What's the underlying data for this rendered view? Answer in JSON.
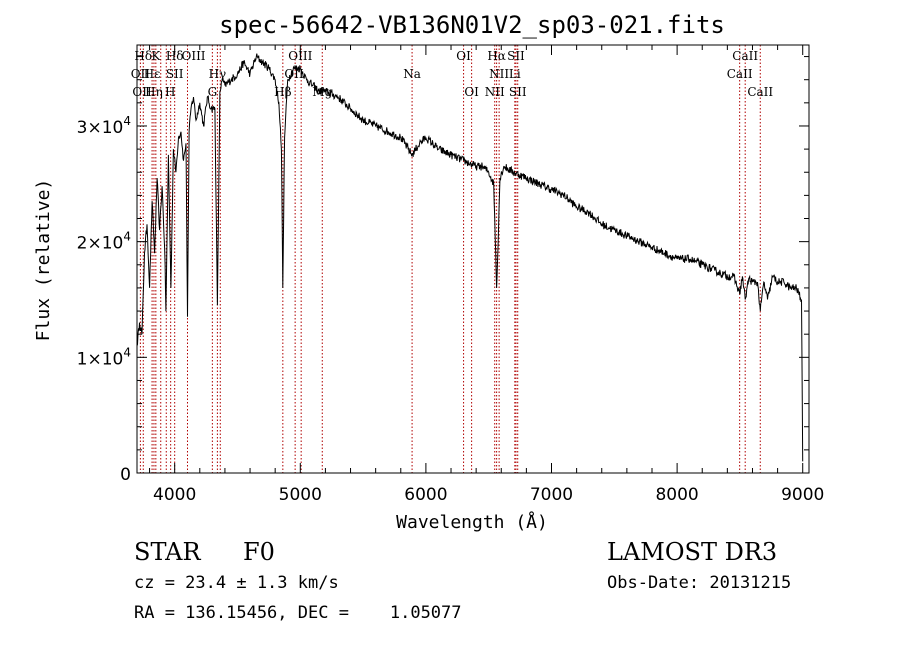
{
  "chart_data": {
    "type": "line",
    "title": "spec-56642-VB136N01V2_sp03-021.fits",
    "xlabel": "Wavelength (Å)",
    "ylabel": "Flux (relative)",
    "xlim": [
      3700,
      9050
    ],
    "ylim": [
      0,
      37000
    ],
    "x_ticks": [
      4000,
      5000,
      6000,
      7000,
      8000,
      9000
    ],
    "x_tick_labels": [
      "4000",
      "5000",
      "6000",
      "7000",
      "8000",
      "9000"
    ],
    "y_ticks": [
      0,
      10000,
      20000,
      30000
    ],
    "y_tick_labels": [
      {
        "mantissa": "0",
        "exp": ""
      },
      {
        "mantissa": "1×10",
        "exp": "4"
      },
      {
        "mantissa": "2×10",
        "exp": "4"
      },
      {
        "mantissa": "3×10",
        "exp": "4"
      }
    ],
    "series": [
      {
        "name": "flux",
        "x": [
          3700,
          3720,
          3740,
          3760,
          3780,
          3800,
          3820,
          3840,
          3860,
          3880,
          3900,
          3920,
          3930,
          3950,
          3970,
          3990,
          4010,
          4030,
          4050,
          4070,
          4090,
          4102,
          4115,
          4130,
          4150,
          4170,
          4200,
          4230,
          4260,
          4290,
          4320,
          4340,
          4360,
          4380,
          4400,
          4450,
          4500,
          4550,
          4600,
          4650,
          4700,
          4750,
          4800,
          4830,
          4850,
          4861,
          4875,
          4900,
          4950,
          5000,
          5050,
          5100,
          5150,
          5200,
          5300,
          5400,
          5500,
          5600,
          5700,
          5800,
          5890,
          5950,
          6000,
          6100,
          6200,
          6300,
          6400,
          6450,
          6500,
          6540,
          6563,
          6590,
          6620,
          6700,
          6800,
          6900,
          7000,
          7100,
          7200,
          7300,
          7400,
          7500,
          7600,
          7700,
          7800,
          7900,
          8000,
          8100,
          8200,
          8300,
          8400,
          8450,
          8498,
          8520,
          8542,
          8570,
          8600,
          8640,
          8662,
          8690,
          8720,
          8760,
          8800,
          8850,
          8900,
          8950,
          8990,
          9000
        ],
        "y": [
          11000,
          13000,
          12000,
          19000,
          21500,
          16000,
          23500,
          19000,
          25500,
          21000,
          24800,
          19500,
          14000,
          27500,
          16000,
          28000,
          26000,
          29000,
          29500,
          27000,
          28500,
          13500,
          29500,
          31500,
          32500,
          30500,
          32000,
          30000,
          32500,
          31500,
          31500,
          14500,
          33000,
          34000,
          33500,
          34000,
          34500,
          35500,
          34500,
          36000,
          35500,
          35000,
          34000,
          32000,
          28000,
          16000,
          29000,
          34000,
          35000,
          35000,
          34000,
          33500,
          33000,
          33000,
          32500,
          31500,
          30500,
          30000,
          29500,
          29000,
          27500,
          28500,
          29000,
          28000,
          27500,
          27000,
          26500,
          26500,
          26000,
          25000,
          16000,
          25500,
          26500,
          26000,
          25500,
          25000,
          24500,
          24000,
          23000,
          22500,
          21500,
          21000,
          20500,
          20000,
          19500,
          19000,
          18500,
          18500,
          18000,
          17500,
          17000,
          17000,
          15500,
          17000,
          15000,
          16800,
          16500,
          16500,
          14000,
          16500,
          15000,
          17000,
          16500,
          16500,
          16000,
          16000,
          15000,
          1000
        ]
      }
    ],
    "line_markers": [
      {
        "label": "Hδ",
        "x": 3750,
        "row": 1
      },
      {
        "label": "K",
        "x": 3850,
        "row": 1
      },
      {
        "label": "Hδ",
        "x": 4000,
        "row": 1
      },
      {
        "label": "OIII",
        "x": 4150,
        "row": 1
      },
      {
        "label": "OII",
        "x": 3727,
        "row": 2
      },
      {
        "label": "Hε",
        "x": 3820,
        "row": 2
      },
      {
        "label": "SII",
        "x": 4000,
        "row": 2
      },
      {
        "label": "Hγ",
        "x": 4340,
        "row": 2
      },
      {
        "label": "OII",
        "x": 3740,
        "row": 3
      },
      {
        "label": "Hη",
        "x": 3835,
        "row": 3
      },
      {
        "label": "H",
        "x": 3965,
        "row": 3
      },
      {
        "label": "G",
        "x": 4300,
        "row": 3
      },
      {
        "label": "OIII",
        "x": 5000,
        "row": 1
      },
      {
        "label": "OII",
        "x": 4950,
        "row": 2
      },
      {
        "label": "Hβ",
        "x": 4861,
        "row": 3
      },
      {
        "label": "Mg",
        "x": 5175,
        "row": 3
      },
      {
        "label": "Na",
        "x": 5890,
        "row": 2
      },
      {
        "label": "OI",
        "x": 6300,
        "row": 1
      },
      {
        "label": "OI",
        "x": 6364,
        "row": 3
      },
      {
        "label": "Hα",
        "x": 6563,
        "row": 1
      },
      {
        "label": "SII",
        "x": 6717,
        "row": 1
      },
      {
        "label": "NII",
        "x": 6583,
        "row": 2
      },
      {
        "label": "Li",
        "x": 6708,
        "row": 2
      },
      {
        "label": "NII",
        "x": 6548,
        "row": 3
      },
      {
        "label": "SII",
        "x": 6731,
        "row": 3
      },
      {
        "label": "CaII",
        "x": 8542,
        "row": 1
      },
      {
        "label": "CaII",
        "x": 8498,
        "row": 2
      },
      {
        "label": "CaII",
        "x": 8662,
        "row": 3
      }
    ],
    "line_marker_positions": [
      3727,
      3750,
      3820,
      3835,
      3850,
      3889,
      3933,
      3968,
      4000,
      4102,
      4300,
      4340,
      4363,
      4861,
      4959,
      5007,
      5175,
      5890,
      6300,
      6364,
      6548,
      6563,
      6583,
      6708,
      6717,
      6731,
      8498,
      8542,
      8662
    ]
  },
  "info": {
    "object_class": "STAR",
    "subclass": "F0",
    "survey": "LAMOST DR3",
    "redshift": "cz = 23.4 ± 1.3 km/s",
    "obs_date": "Obs-Date: 20131215",
    "coords": "RA = 136.15456, DEC =    1.05077"
  }
}
